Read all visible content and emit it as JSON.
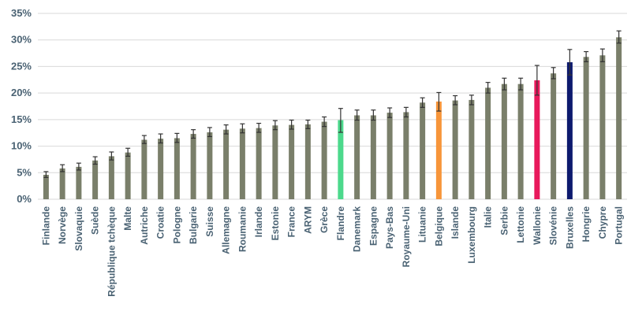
{
  "chart_data": {
    "type": "bar",
    "title": "",
    "xlabel": "",
    "ylabel": "",
    "ylim": [
      0,
      35
    ],
    "yticks": [
      0,
      5,
      10,
      15,
      20,
      25,
      30,
      35
    ],
    "ytick_labels": [
      "0%",
      "5%",
      "10%",
      "15%",
      "20%",
      "25%",
      "30%",
      "35%"
    ],
    "grid": true,
    "default_color": "#7a7f6a",
    "categories": [
      "Finlande",
      "Norvège",
      "Slovaquie",
      "Suède",
      "République tchèque",
      "Malte",
      "Autriche",
      "Croatie",
      "Pologne",
      "Bulgarie",
      "Suisse",
      "Allemagne",
      "Roumanie",
      "Irlande",
      "Estonie",
      "France",
      "ARYM",
      "Grèce",
      "Flandre",
      "Danemark",
      "Espagne",
      "Pays-Bas",
      "Royaume-Uni",
      "Lituanie",
      "Belgique",
      "Islande",
      "Luxembourg",
      "Italie",
      "Serbie",
      "Lettonie",
      "Wallonie",
      "Slovénie",
      "Bruxelles",
      "Hongrie",
      "Chypre",
      "Portugal"
    ],
    "values": [
      4.6,
      5.8,
      6.1,
      7.3,
      8.1,
      8.8,
      11.2,
      11.4,
      11.5,
      12.3,
      12.6,
      13.1,
      13.3,
      13.4,
      13.9,
      14.0,
      14.1,
      14.6,
      14.9,
      15.8,
      15.8,
      16.3,
      16.4,
      18.2,
      18.4,
      18.6,
      18.7,
      21.0,
      21.7,
      21.7,
      22.4,
      23.7,
      25.8,
      26.8,
      27.1,
      30.5
    ],
    "err_low": [
      4.1,
      5.2,
      5.5,
      6.6,
      7.4,
      8.1,
      10.5,
      10.6,
      10.7,
      11.5,
      11.8,
      12.3,
      12.5,
      12.6,
      13.1,
      13.2,
      13.3,
      13.7,
      12.6,
      14.9,
      14.9,
      15.4,
      15.5,
      17.3,
      16.6,
      17.8,
      17.8,
      20.0,
      20.6,
      20.6,
      19.6,
      22.7,
      23.4,
      25.9,
      25.9,
      29.4
    ],
    "err_high": [
      5.2,
      6.5,
      6.8,
      8.0,
      8.9,
      9.6,
      12.0,
      12.3,
      12.4,
      13.1,
      13.5,
      14.0,
      14.2,
      14.3,
      14.8,
      14.9,
      14.9,
      15.5,
      17.1,
      16.8,
      16.8,
      17.2,
      17.3,
      19.1,
      20.1,
      19.5,
      19.6,
      22.0,
      22.8,
      22.8,
      25.2,
      24.8,
      28.2,
      27.8,
      28.3,
      31.7
    ],
    "highlights": [
      {
        "category": "Flandre",
        "color": "#4cd98c"
      },
      {
        "category": "Belgique",
        "color": "#f7953a"
      },
      {
        "category": "Wallonie",
        "color": "#e8195c"
      },
      {
        "category": "Bruxelles",
        "color": "#0d1a6e"
      }
    ]
  }
}
